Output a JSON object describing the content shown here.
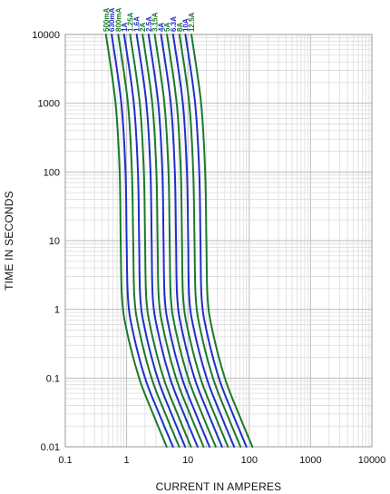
{
  "chart_data": {
    "type": "line",
    "title": "",
    "xlabel": "CURRENT IN AMPERES",
    "ylabel": "TIME IN SECONDS",
    "x_scale": "log",
    "y_scale": "log",
    "xlim": [
      0.1,
      10000
    ],
    "ylim": [
      0.01,
      10000
    ],
    "x_ticks": [
      {
        "value": 0.1,
        "label": "0.1"
      },
      {
        "value": 1,
        "label": "1"
      },
      {
        "value": 10,
        "label": "10"
      },
      {
        "value": 100,
        "label": "100"
      },
      {
        "value": 1000,
        "label": "1000"
      },
      {
        "value": 10000,
        "label": "10000"
      }
    ],
    "y_ticks": [
      {
        "value": 0.01,
        "label": "0.01"
      },
      {
        "value": 0.1,
        "label": "0.1"
      },
      {
        "value": 1,
        "label": "1"
      },
      {
        "value": 10,
        "label": "10"
      },
      {
        "value": 100,
        "label": "100"
      },
      {
        "value": 1000,
        "label": "1000"
      },
      {
        "value": 10000,
        "label": "10000"
      }
    ],
    "grid": true,
    "legend": "labels along top of curves",
    "series": [
      {
        "name": "500mA",
        "color": "#1a7a2a",
        "points": [
          [
            0.46,
            10000
          ],
          [
            0.66,
            1000
          ],
          [
            0.77,
            100
          ],
          [
            0.8,
            10
          ],
          [
            0.84,
            1.5
          ],
          [
            1.0,
            0.5
          ],
          [
            1.6,
            0.1
          ],
          [
            2.7,
            0.03
          ],
          [
            4.5,
            0.01
          ]
        ]
      },
      {
        "name": "630mA",
        "color": "#1f2fc8",
        "points": [
          [
            0.57,
            10000
          ],
          [
            0.82,
            1000
          ],
          [
            0.96,
            100
          ],
          [
            1.0,
            10
          ],
          [
            1.05,
            1.5
          ],
          [
            1.25,
            0.5
          ],
          [
            2.0,
            0.1
          ],
          [
            3.4,
            0.03
          ],
          [
            5.7,
            0.01
          ]
        ]
      },
      {
        "name": "800mA",
        "color": "#1a7a2a",
        "points": [
          [
            0.73,
            10000
          ],
          [
            1.05,
            1000
          ],
          [
            1.22,
            100
          ],
          [
            1.28,
            10
          ],
          [
            1.34,
            1.5
          ],
          [
            1.6,
            0.5
          ],
          [
            2.55,
            0.1
          ],
          [
            4.3,
            0.03
          ],
          [
            7.2,
            0.01
          ]
        ]
      },
      {
        "name": "1A",
        "color": "#1f2fc8",
        "points": [
          [
            0.91,
            10000
          ],
          [
            1.31,
            1000
          ],
          [
            1.53,
            100
          ],
          [
            1.6,
            10
          ],
          [
            1.67,
            1.5
          ],
          [
            2.0,
            0.5
          ],
          [
            3.2,
            0.1
          ],
          [
            5.4,
            0.03
          ],
          [
            9.0,
            0.01
          ]
        ]
      },
      {
        "name": "1.25A",
        "color": "#1a7a2a",
        "points": [
          [
            1.14,
            10000
          ],
          [
            1.64,
            1000
          ],
          [
            1.91,
            100
          ],
          [
            2.0,
            10
          ],
          [
            2.09,
            1.5
          ],
          [
            2.5,
            0.5
          ],
          [
            4.0,
            0.1
          ],
          [
            6.75,
            0.03
          ],
          [
            11.2,
            0.01
          ]
        ]
      },
      {
        "name": "1.6A",
        "color": "#1f2fc8",
        "points": [
          [
            1.46,
            10000
          ],
          [
            2.1,
            1000
          ],
          [
            2.45,
            100
          ],
          [
            2.56,
            10
          ],
          [
            2.67,
            1.5
          ],
          [
            3.2,
            0.5
          ],
          [
            5.1,
            0.1
          ],
          [
            8.6,
            0.03
          ],
          [
            14.4,
            0.01
          ]
        ]
      },
      {
        "name": "2A",
        "color": "#1a7a2a",
        "points": [
          [
            1.82,
            10000
          ],
          [
            2.62,
            1000
          ],
          [
            3.06,
            100
          ],
          [
            3.2,
            10
          ],
          [
            3.34,
            1.5
          ],
          [
            4.0,
            0.5
          ],
          [
            6.4,
            0.1
          ],
          [
            10.8,
            0.03
          ],
          [
            18.0,
            0.01
          ]
        ]
      },
      {
        "name": "2.5A",
        "color": "#1f2fc8",
        "points": [
          [
            2.28,
            10000
          ],
          [
            3.28,
            1000
          ],
          [
            3.83,
            100
          ],
          [
            4.0,
            10
          ],
          [
            4.18,
            1.5
          ],
          [
            5.0,
            0.5
          ],
          [
            8.0,
            0.1
          ],
          [
            13.5,
            0.03
          ],
          [
            22.5,
            0.01
          ]
        ]
      },
      {
        "name": "3.15A",
        "color": "#1a7a2a",
        "points": [
          [
            2.87,
            10000
          ],
          [
            4.13,
            1000
          ],
          [
            4.82,
            100
          ],
          [
            5.04,
            10
          ],
          [
            5.26,
            1.5
          ],
          [
            6.3,
            0.5
          ],
          [
            10.1,
            0.1
          ],
          [
            17.0,
            0.03
          ],
          [
            28.4,
            0.01
          ]
        ]
      },
      {
        "name": "4A",
        "color": "#1f2fc8",
        "points": [
          [
            3.64,
            10000
          ],
          [
            5.25,
            1000
          ],
          [
            6.12,
            100
          ],
          [
            6.4,
            10
          ],
          [
            6.68,
            1.5
          ],
          [
            8.0,
            0.5
          ],
          [
            12.8,
            0.1
          ],
          [
            21.6,
            0.03
          ],
          [
            36.0,
            0.01
          ]
        ]
      },
      {
        "name": "5A",
        "color": "#1a7a2a",
        "points": [
          [
            4.55,
            10000
          ],
          [
            6.56,
            1000
          ],
          [
            7.65,
            100
          ],
          [
            8.0,
            10
          ],
          [
            8.35,
            1.5
          ],
          [
            10.0,
            0.5
          ],
          [
            16.0,
            0.1
          ],
          [
            27.0,
            0.03
          ],
          [
            45.0,
            0.01
          ]
        ]
      },
      {
        "name": "6.3A",
        "color": "#1f2fc8",
        "points": [
          [
            5.73,
            10000
          ],
          [
            8.26,
            1000
          ],
          [
            9.64,
            100
          ],
          [
            10.1,
            10
          ],
          [
            10.5,
            1.5
          ],
          [
            12.6,
            0.5
          ],
          [
            20.2,
            0.1
          ],
          [
            34.0,
            0.03
          ],
          [
            56.7,
            0.01
          ]
        ]
      },
      {
        "name": "8A",
        "color": "#1a7a2a",
        "points": [
          [
            7.28,
            10000
          ],
          [
            10.5,
            1000
          ],
          [
            12.2,
            100
          ],
          [
            12.8,
            10
          ],
          [
            13.4,
            1.5
          ],
          [
            16.0,
            0.5
          ],
          [
            25.6,
            0.1
          ],
          [
            43.2,
            0.03
          ],
          [
            72.0,
            0.01
          ]
        ]
      },
      {
        "name": "10A",
        "color": "#1f2fc8",
        "points": [
          [
            9.1,
            10000
          ],
          [
            13.1,
            1000
          ],
          [
            15.3,
            100
          ],
          [
            16.0,
            10
          ],
          [
            16.7,
            1.5
          ],
          [
            20.0,
            0.5
          ],
          [
            32.0,
            0.1
          ],
          [
            54.0,
            0.03
          ],
          [
            90.0,
            0.01
          ]
        ]
      },
      {
        "name": "12.5A",
        "color": "#1a7a2a",
        "points": [
          [
            11.4,
            10000
          ],
          [
            16.4,
            1000
          ],
          [
            19.1,
            100
          ],
          [
            20.0,
            10
          ],
          [
            20.9,
            1.5
          ],
          [
            25.0,
            0.5
          ],
          [
            40.0,
            0.1
          ],
          [
            67.5,
            0.03
          ],
          [
            112.5,
            0.01
          ]
        ]
      }
    ]
  }
}
